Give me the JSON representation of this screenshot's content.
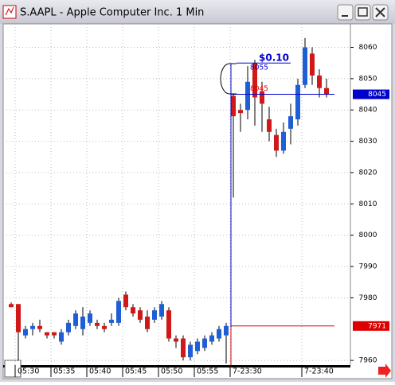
{
  "window": {
    "title": "S.AAPL - Apple Computer Inc. 1 Min"
  },
  "chart_data": {
    "type": "candlestick",
    "categories": [
      null,
      "05:30",
      null,
      null,
      null,
      null,
      "05:35",
      null,
      null,
      null,
      null,
      "05:40",
      null,
      null,
      null,
      null,
      "05:45",
      null,
      null,
      null,
      null,
      "05:50",
      null,
      null,
      null,
      null,
      "05:55",
      null,
      null,
      null,
      null,
      "7-23:30",
      null,
      null,
      null,
      null,
      null,
      null,
      null,
      null,
      null,
      "7-23:40",
      null,
      null,
      null
    ],
    "open": [
      7978,
      7978,
      7968,
      7970,
      7971,
      7969,
      7969,
      7966,
      7969,
      7971,
      7970,
      7972,
      7972,
      7971,
      7972,
      7972,
      7981,
      7977,
      7976,
      7974,
      7973,
      7974,
      7976,
      7967,
      7967,
      7961,
      7963,
      7964,
      7966,
      7967,
      7968,
      8044.5,
      8040,
      8040,
      8055,
      8046,
      8037,
      8032,
      8027,
      8034,
      8037,
      8048,
      8058,
      8051,
      8047
    ],
    "high": [
      7978.5,
      7978,
      7971,
      7972,
      7973,
      7969,
      7969,
      7970,
      7973,
      7976,
      7977,
      7976,
      7973,
      7972,
      7975,
      7980,
      7982,
      7978,
      7977,
      7976,
      7977,
      7979,
      7977,
      7968,
      7968,
      7966,
      7967,
      7968,
      7969,
      7971,
      7972,
      8045,
      8042,
      8054,
      8056,
      8049,
      8041,
      8034,
      8036,
      8042,
      8050,
      8063,
      8060,
      8053,
      8050
    ],
    "low": [
      7977,
      7960,
      7967,
      7968,
      7969,
      7967,
      7967,
      7965,
      7968,
      7970,
      7968,
      7971,
      7970,
      7969,
      7971,
      7971,
      7976,
      7974,
      7972,
      7969,
      7972,
      7973,
      7966,
      7964,
      7960,
      7960,
      7962,
      7963,
      7965,
      7966,
      7959,
      8012,
      8033,
      8037,
      8035,
      8033,
      8030,
      8025,
      8026,
      8029,
      8035,
      8047,
      8048,
      8044,
      8044
    ],
    "close": [
      7977,
      7969,
      7970,
      7971,
      7970,
      7968,
      7968,
      7969,
      7972,
      7975,
      7974,
      7975,
      7971,
      7970,
      7973,
      7979,
      7977,
      7975,
      7973,
      7970,
      7976,
      7978,
      7967,
      7966,
      7961,
      7965,
      7966,
      7967,
      7968,
      7970,
      7971,
      8038,
      8039,
      8049,
      8044,
      8042,
      8033,
      8027,
      8033,
      8038,
      8048,
      8060,
      8051,
      8047,
      8045
    ],
    "up_color": "#1f5fd6",
    "down_color": "#d01818",
    "ylim": [
      7958.5,
      8067.5
    ],
    "yticks": [
      7960,
      7980,
      7990,
      8000,
      8010,
      8020,
      8030,
      8040,
      8050,
      8060
    ],
    "grid": true,
    "markers": [
      {
        "value": 8045,
        "color": "#0000cc"
      },
      {
        "value": 7971,
        "color": "#dd0000"
      }
    ],
    "annotations": [
      {
        "text": "$0.10"
      },
      {
        "value": 8055
      },
      {
        "value": 8045
      }
    ]
  }
}
